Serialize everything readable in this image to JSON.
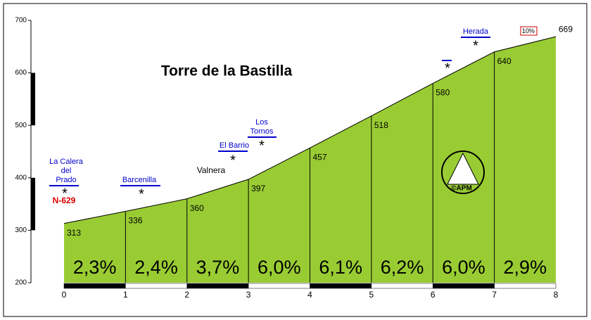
{
  "chart_data": {
    "type": "area",
    "title": "Torre de la Bastilla",
    "x": [
      0,
      1,
      2,
      3,
      4,
      5,
      6,
      7,
      8
    ],
    "values": [
      313,
      336,
      360,
      397,
      457,
      518,
      580,
      640,
      669
    ],
    "color": "#99cc33",
    "xlim": [
      0,
      8
    ],
    "xticks": [
      0,
      1,
      2,
      3,
      4,
      5,
      6,
      7,
      8
    ],
    "ylim": [
      200,
      700
    ],
    "yticks": [
      200,
      300,
      400,
      500,
      600,
      700
    ],
    "segment_labels": [
      "2,3%",
      "2,4%",
      "3,7%",
      "6,0%",
      "6,1%",
      "6,2%",
      "6,0%",
      "2,9%"
    ],
    "places": [
      [
        "La Calera",
        "del",
        "Prado"
      ],
      [
        "N-629"
      ],
      [
        "Barcenilla"
      ],
      [
        "Valnera"
      ],
      [
        "El Barrio"
      ],
      [
        "Los",
        "Tornos"
      ],
      [
        "Herada"
      ],
      [
        "10%"
      ],
      [
        "©APM"
      ]
    ]
  }
}
